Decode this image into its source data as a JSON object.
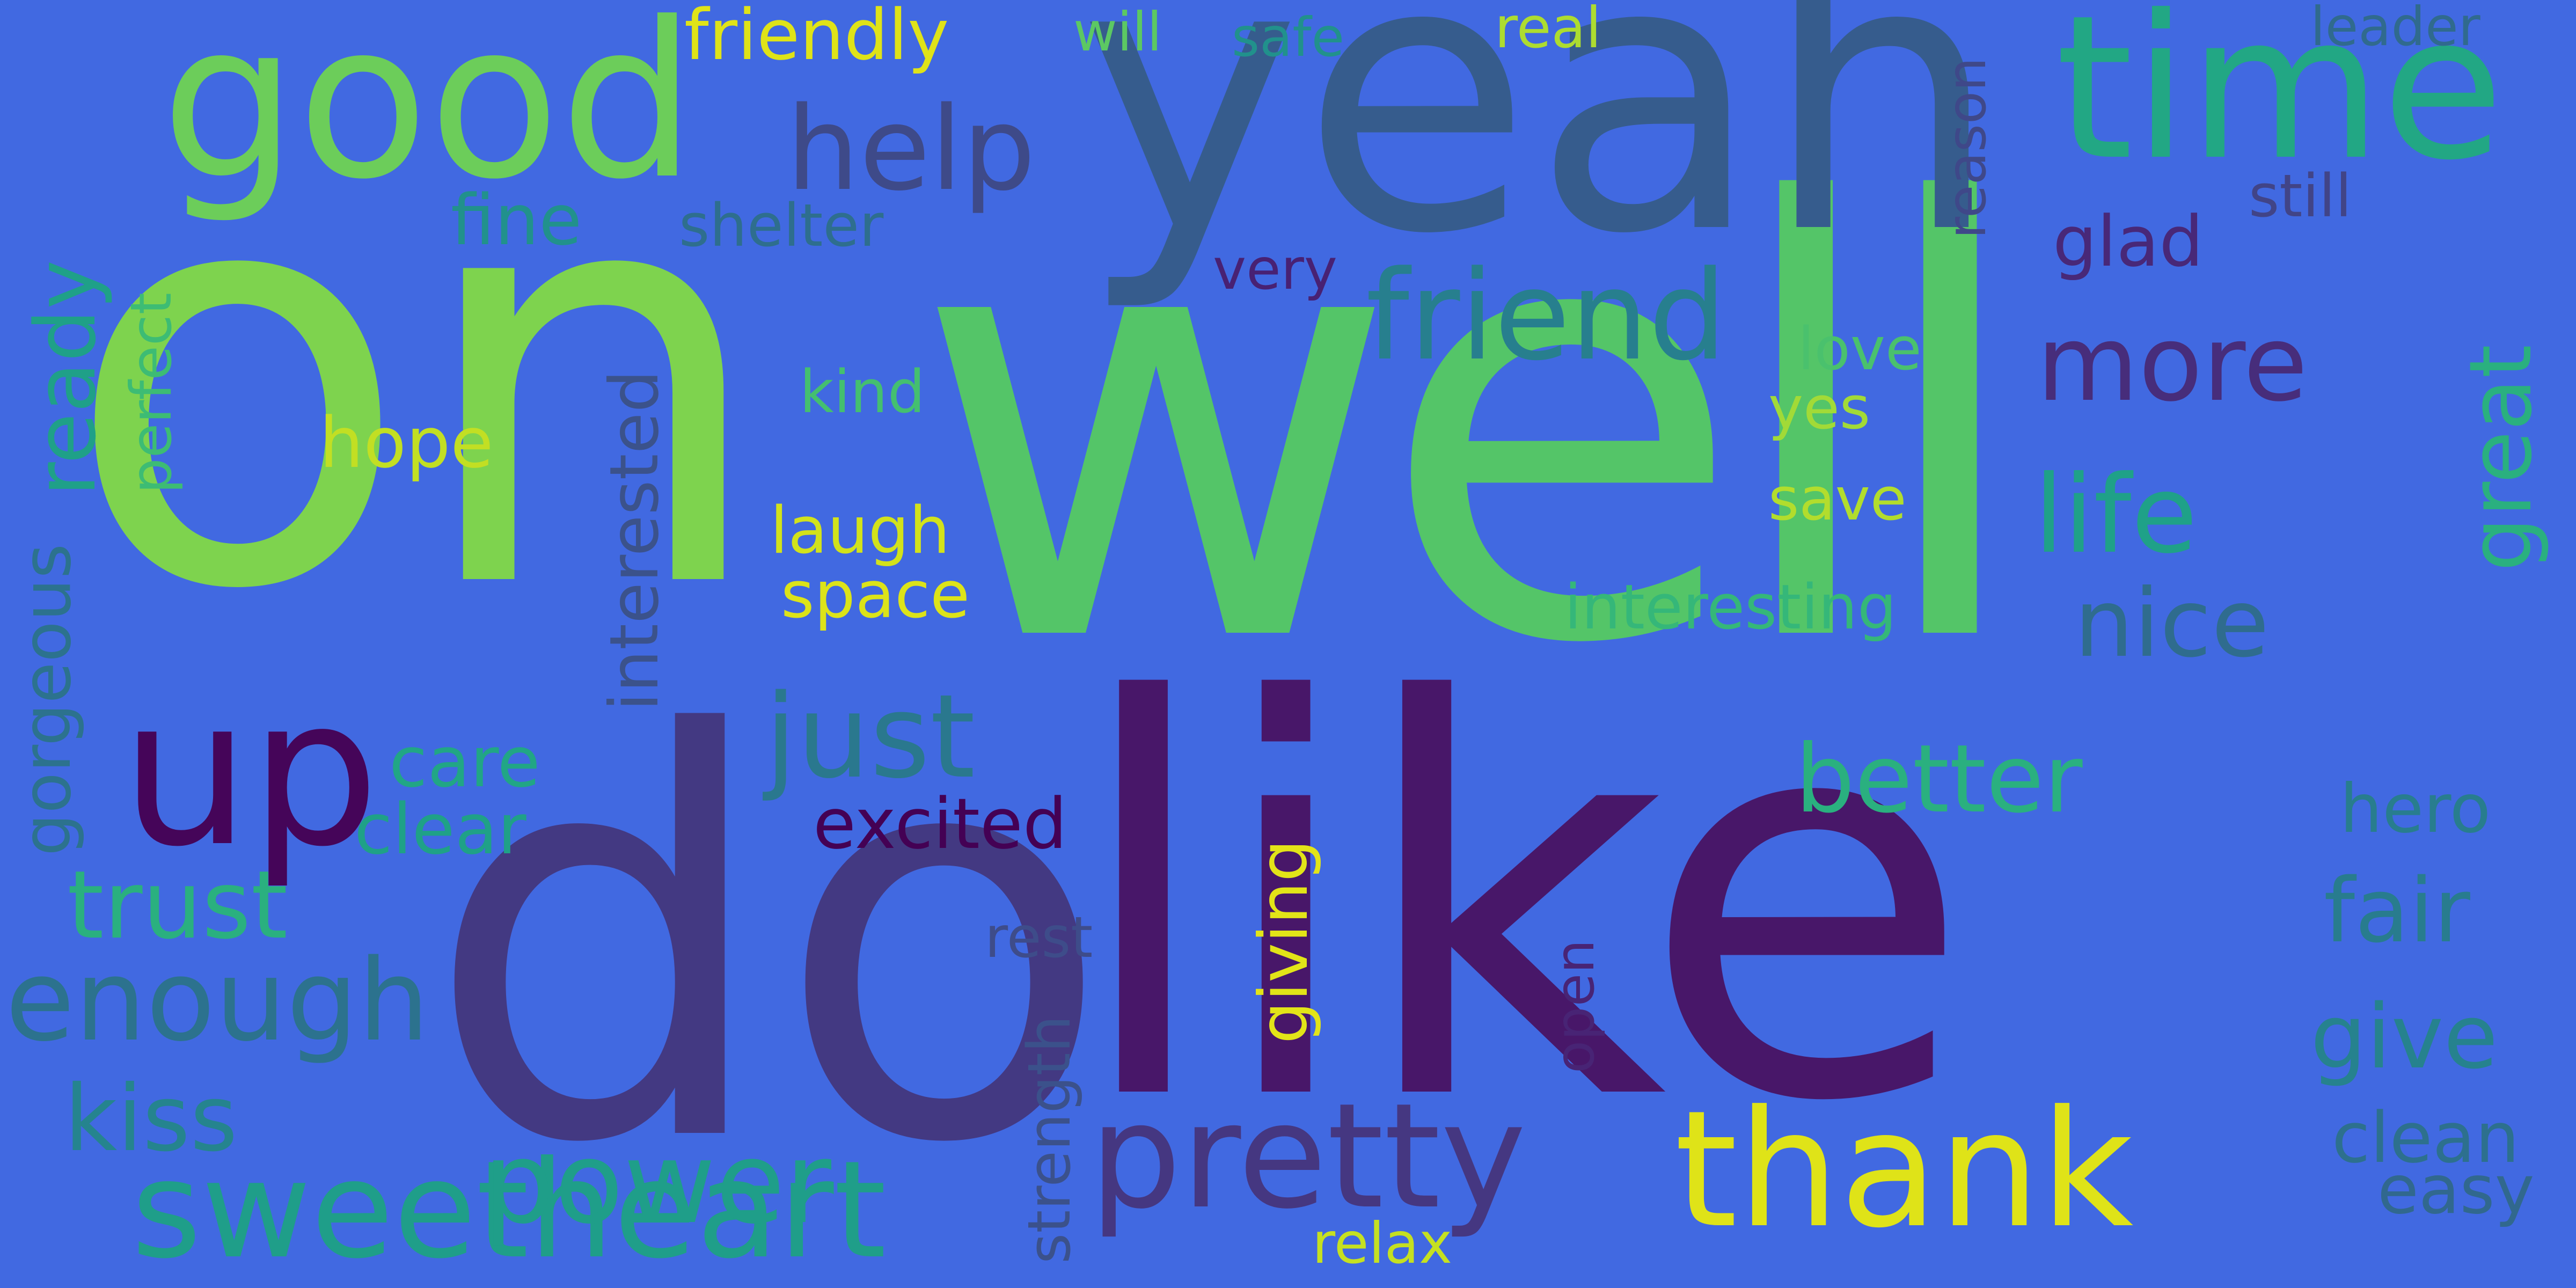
{
  "background_color": "#4169E1",
  "words": [
    {
      "text": "on",
      "color": "#7ED34E"
    },
    {
      "text": "well",
      "color": "#54C568"
    },
    {
      "text": "do",
      "color": "#433982"
    },
    {
      "text": "like",
      "color": "#481769"
    },
    {
      "text": "yeah",
      "color": "#365C8D"
    },
    {
      "text": "good",
      "color": "#6CCD5A"
    },
    {
      "text": "time",
      "color": "#22A784"
    },
    {
      "text": "up",
      "color": "#450559"
    },
    {
      "text": "thank",
      "color": "#DFE318"
    },
    {
      "text": "pretty",
      "color": "#453781"
    },
    {
      "text": "sweetheart",
      "color": "#1F9E89"
    },
    {
      "text": "power",
      "color": "#1F9E89"
    },
    {
      "text": "friend",
      "color": "#277F8E"
    },
    {
      "text": "help",
      "color": "#3E4A89"
    },
    {
      "text": "just",
      "color": "#2A788E"
    },
    {
      "text": "enough",
      "color": "#2C728E"
    },
    {
      "text": "more",
      "color": "#472D7B"
    },
    {
      "text": "life",
      "color": "#1FA188"
    },
    {
      "text": "nice",
      "color": "#2F6C8E"
    },
    {
      "text": "better",
      "color": "#2AB07F"
    },
    {
      "text": "great",
      "color": "#2AB07F"
    },
    {
      "text": "trust",
      "color": "#2AB07F"
    },
    {
      "text": "kiss",
      "color": "#25848E"
    },
    {
      "text": "fair",
      "color": "#287C8E"
    },
    {
      "text": "give",
      "color": "#26828E"
    },
    {
      "text": "friendly",
      "color": "#DFE318"
    },
    {
      "text": "excited",
      "color": "#440154"
    },
    {
      "text": "hope",
      "color": "#C2DF23"
    },
    {
      "text": "ready",
      "color": "#1FA088"
    },
    {
      "text": "glad",
      "color": "#482878"
    },
    {
      "text": "clean",
      "color": "#2D708E"
    },
    {
      "text": "fine",
      "color": "#21918C"
    },
    {
      "text": "care",
      "color": "#21A685"
    },
    {
      "text": "clear",
      "color": "#1FA187"
    },
    {
      "text": "interested",
      "color": "#3B528B"
    },
    {
      "text": "gorgeous",
      "color": "#2C728E"
    },
    {
      "text": "giving",
      "color": "#E2E418"
    },
    {
      "text": "easy",
      "color": "#31688E"
    },
    {
      "text": "hero",
      "color": "#287D8E"
    },
    {
      "text": "laugh",
      "color": "#D2E21B"
    },
    {
      "text": "space",
      "color": "#DCE319"
    },
    {
      "text": "shelter",
      "color": "#2E6E8E"
    },
    {
      "text": "interesting",
      "color": "#35B779"
    },
    {
      "text": "strength",
      "color": "#3B518B"
    },
    {
      "text": "perfect",
      "color": "#3DBC74"
    },
    {
      "text": "still",
      "color": "#414487"
    },
    {
      "text": "very",
      "color": "#482173"
    },
    {
      "text": "kind",
      "color": "#44BF70"
    },
    {
      "text": "love",
      "color": "#4AC16D"
    },
    {
      "text": "yes",
      "color": "#A2DA37"
    },
    {
      "text": "save",
      "color": "#B2DD2D"
    },
    {
      "text": "will",
      "color": "#5CC863"
    },
    {
      "text": "safe",
      "color": "#21918C"
    },
    {
      "text": "real",
      "color": "#ADDC30"
    },
    {
      "text": "leader",
      "color": "#306A8E"
    },
    {
      "text": "reason",
      "color": "#3F4889"
    },
    {
      "text": "rest",
      "color": "#3E4C8A"
    },
    {
      "text": "open",
      "color": "#482475"
    },
    {
      "text": "relax",
      "color": "#C5E021"
    }
  ]
}
